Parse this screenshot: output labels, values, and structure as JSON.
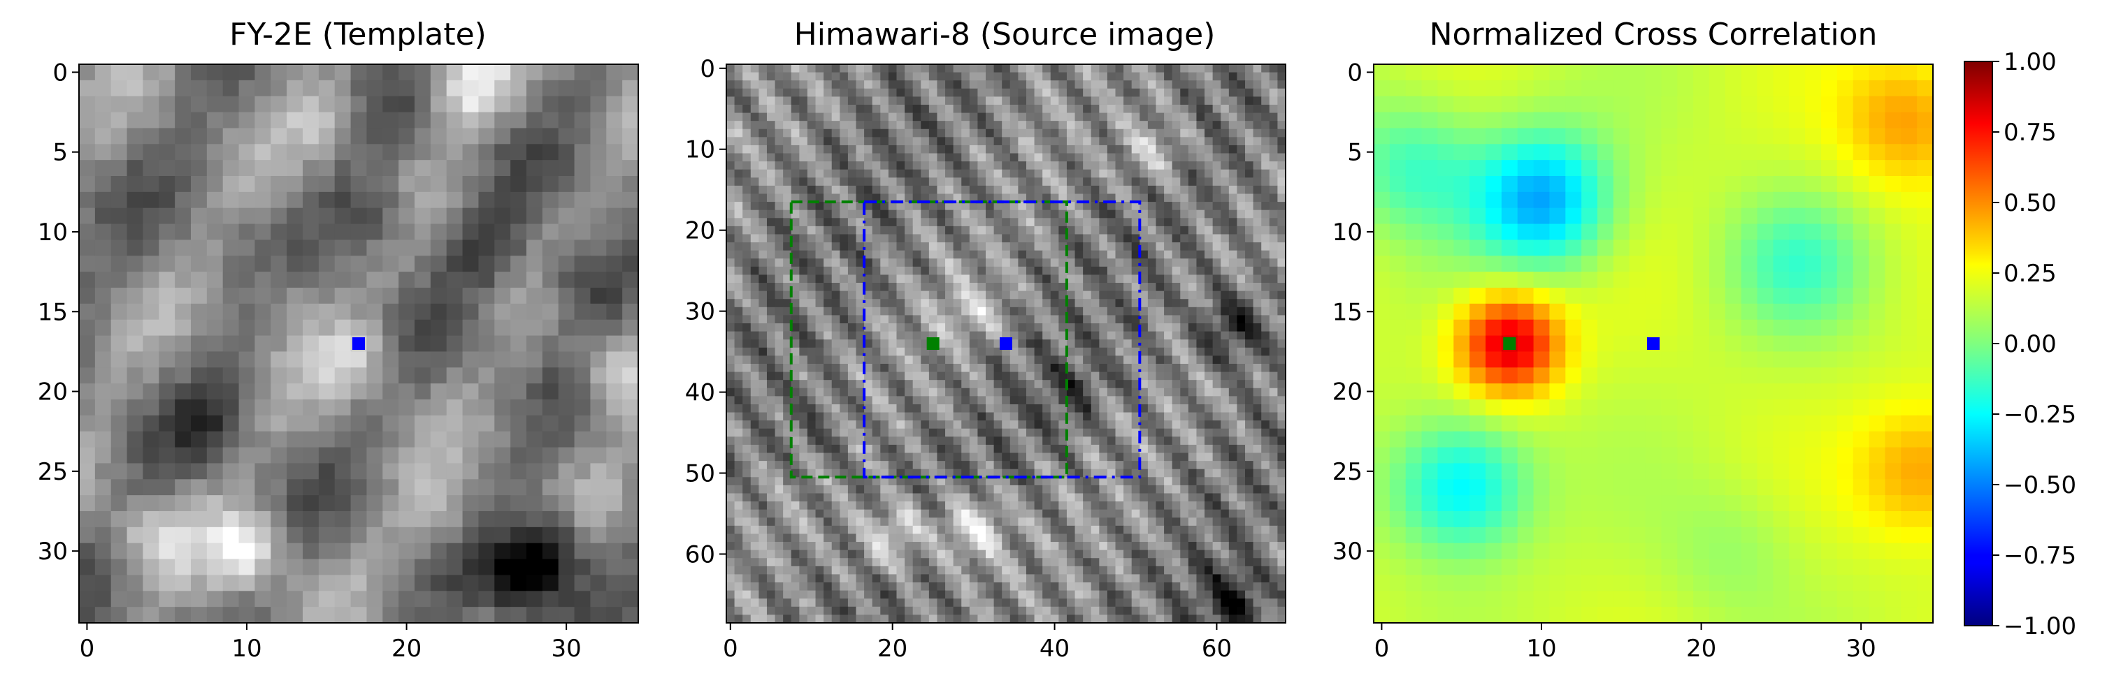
{
  "chart_data": [
    {
      "type": "heatmap",
      "title": "FY-2E (Template)",
      "colormap": "gray",
      "xlim": [
        0,
        35
      ],
      "ylim": [
        35,
        0
      ],
      "xticks": [
        0,
        10,
        20,
        30
      ],
      "yticks": [
        0,
        5,
        10,
        15,
        20,
        25,
        30
      ],
      "xtick_labels": [
        "0",
        "10",
        "20",
        "30"
      ],
      "ytick_labels": [
        "0",
        "5",
        "10",
        "15",
        "20",
        "25",
        "30"
      ],
      "grid_cells": [
        35,
        35
      ],
      "markers": [
        {
          "x": 17,
          "y": 17,
          "color": "#0000ff"
        }
      ],
      "features": [
        {
          "x": 17,
          "y": 18,
          "value": 0.8
        },
        {
          "x": 12,
          "y": 14,
          "value": 0.7
        },
        {
          "x": 33,
          "y": 19,
          "value": 0.85
        },
        {
          "x": 24,
          "y": 1,
          "value": 0.85
        },
        {
          "x": 10,
          "y": 30,
          "value": 0.95
        },
        {
          "x": 4,
          "y": 29,
          "value": 0.75
        },
        {
          "x": 15,
          "y": 3,
          "value": 0.72
        },
        {
          "x": 22,
          "y": 28,
          "value": 0.7
        },
        {
          "x": 29,
          "y": 30,
          "value": 0.05
        },
        {
          "x": 27,
          "y": 32,
          "value": 0.1
        },
        {
          "x": 31,
          "y": 13,
          "value": 0.15
        },
        {
          "x": 18,
          "y": 9,
          "value": 0.2
        },
        {
          "x": 25,
          "y": 11,
          "value": 0.25
        },
        {
          "x": 8,
          "y": 22,
          "value": 0.3
        }
      ]
    },
    {
      "type": "heatmap",
      "title": "Himawari-8 (Source image)",
      "colormap": "gray",
      "xlim": [
        0,
        69
      ],
      "ylim": [
        69,
        0
      ],
      "xticks": [
        0,
        20,
        40,
        60
      ],
      "yticks": [
        0,
        10,
        20,
        30,
        40,
        50,
        60
      ],
      "xtick_labels": [
        "0",
        "20",
        "40",
        "60"
      ],
      "ytick_labels": [
        "0",
        "10",
        "20",
        "30",
        "40",
        "50",
        "60"
      ],
      "grid_cells": [
        69,
        69
      ],
      "boxes": [
        {
          "x0": 8,
          "y0": 17,
          "x1": 42,
          "y1": 51,
          "color": "#008000",
          "style": "dashed"
        },
        {
          "x0": 17,
          "y0": 17,
          "x1": 51,
          "y1": 51,
          "color": "#0000ff",
          "style": "dashdot"
        }
      ],
      "markers": [
        {
          "x": 25,
          "y": 34,
          "color": "#008000"
        },
        {
          "x": 34,
          "y": 34,
          "color": "#0000ff"
        }
      ],
      "features": [
        {
          "x": 30,
          "y": 57,
          "value": 0.9
        },
        {
          "x": 20,
          "y": 58,
          "value": 0.85
        },
        {
          "x": 62,
          "y": 32,
          "value": 0.1
        },
        {
          "x": 62,
          "y": 66,
          "value": 0.15
        },
        {
          "x": 52,
          "y": 10,
          "value": 0.75
        },
        {
          "x": 30,
          "y": 30,
          "value": 0.72
        },
        {
          "x": 42,
          "y": 40,
          "value": 0.3
        },
        {
          "x": 10,
          "y": 45,
          "value": 0.35
        }
      ]
    },
    {
      "type": "heatmap",
      "title": "Normalized Cross Correlation",
      "colormap": "jet",
      "xlim": [
        0,
        35
      ],
      "ylim": [
        35,
        0
      ],
      "xticks": [
        0,
        10,
        20,
        30
      ],
      "yticks": [
        0,
        5,
        10,
        15,
        20,
        25,
        30
      ],
      "xtick_labels": [
        "0",
        "10",
        "20",
        "30"
      ],
      "ytick_labels": [
        "0",
        "5",
        "10",
        "15",
        "20",
        "25",
        "30"
      ],
      "grid_cells": [
        35,
        35
      ],
      "vmin": -1.0,
      "vmax": 1.0,
      "baseline": 0.15,
      "markers": [
        {
          "x": 8,
          "y": 17,
          "color": "#008000"
        },
        {
          "x": 17,
          "y": 17,
          "color": "#0000ff"
        }
      ],
      "features": [
        {
          "x": 8,
          "y": 17,
          "value": 0.85
        },
        {
          "x": 33,
          "y": 3,
          "value": 0.45
        },
        {
          "x": 34,
          "y": 25,
          "value": 0.45
        },
        {
          "x": 10,
          "y": 8,
          "value": -0.42
        },
        {
          "x": 5,
          "y": 26,
          "value": -0.3
        },
        {
          "x": 22,
          "y": 30,
          "value": 0.05
        },
        {
          "x": 26,
          "y": 12,
          "value": -0.1
        },
        {
          "x": 2,
          "y": 6,
          "value": -0.12
        }
      ],
      "colorbar": {
        "ticks": [
          1.0,
          0.75,
          0.5,
          0.25,
          0.0,
          -0.25,
          -0.5,
          -0.75,
          -1.0
        ],
        "tick_labels": [
          "1.00",
          "0.75",
          "0.50",
          "0.25",
          "0.00",
          "−0.25",
          "−0.50",
          "−0.75",
          "−1.00"
        ]
      }
    }
  ]
}
